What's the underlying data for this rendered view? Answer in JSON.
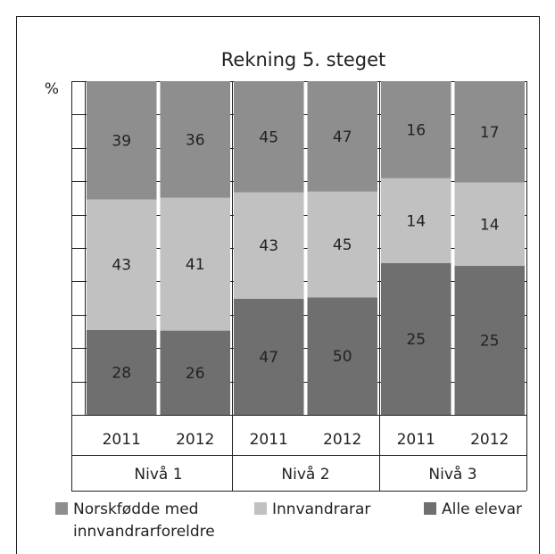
{
  "chart_data": {
    "type": "bar",
    "stacking": "percent",
    "title": "Rekning 5. steget",
    "y_label": "%",
    "categories": [
      "2011",
      "2012",
      "2011",
      "2012",
      "2011",
      "2012"
    ],
    "groups": [
      "Nivå 1",
      "Nivå 2",
      "Nivå 3"
    ],
    "series": [
      {
        "name": "Norskfødde med innvandrarforeldre",
        "color": "#8e8e8e",
        "values": [
          39,
          36,
          45,
          47,
          16,
          17
        ]
      },
      {
        "name": "Innvandrarar",
        "color": "#c1c1c1",
        "values": [
          43,
          41,
          43,
          45,
          14,
          14
        ]
      },
      {
        "name": "Alle elevar",
        "color": "#6f6f6f",
        "values": [
          28,
          26,
          47,
          50,
          25,
          25
        ]
      }
    ],
    "ylim": [
      0,
      100
    ],
    "yticks": [
      0,
      10,
      20,
      30,
      40,
      50,
      60,
      70,
      80,
      90,
      100
    ],
    "grid": true
  }
}
